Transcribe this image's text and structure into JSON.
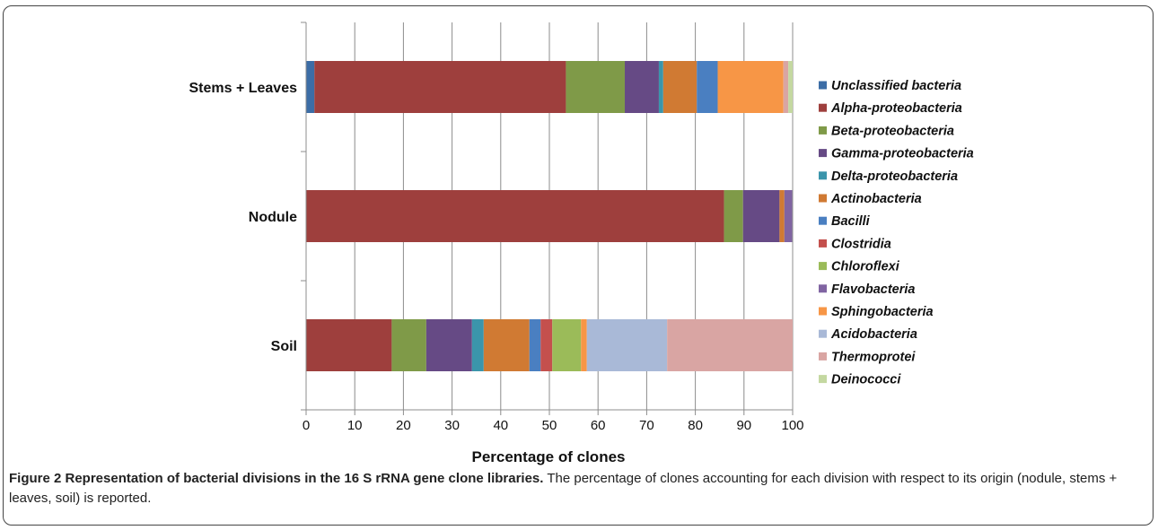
{
  "colors": {
    "Unclassified bacteria": "#3c6da6",
    "Alpha-proteobacteria": "#9e3f3d",
    "Beta-proteobacteria": "#7f9a48",
    "Gamma-proteobacteria": "#664a85",
    "Delta-proteobacteria": "#3b95ab",
    "Actinobacteria": "#d07a33",
    "Bacilli": "#4a7fc1",
    "Clostridia": "#c4504d",
    "Chloroflexi": "#9bbb59",
    "Flavobacteria": "#8064a2",
    "Sphingobacteria": "#f79646",
    "Acidobacteria": "#a9b9d7",
    "Thermoprotei": "#d9a5a3",
    "Deinococci": "#c4d8a1"
  },
  "caption": {
    "title": "Figure 2 Representation of bacterial divisions in the 16 S rRNA gene clone libraries.",
    "text": " The percentage of clones accounting for each division with respect to its origin (nodule, stems + leaves, soil) is reported."
  },
  "chart_data": {
    "type": "bar",
    "orientation": "horizontal",
    "stacked": true,
    "categories": [
      "Stems + Leaves",
      "Nodule",
      "Soil"
    ],
    "xlabel": "Percentage of clones",
    "ylabel": "",
    "xlim": [
      0,
      100
    ],
    "xticks": [
      0,
      10,
      20,
      30,
      40,
      50,
      60,
      70,
      80,
      90,
      100
    ],
    "grid": "vertical",
    "legend_position": "right",
    "series": [
      {
        "name": "Unclassified bacteria",
        "values": [
          1.7,
          0,
          0
        ]
      },
      {
        "name": "Alpha-proteobacteria",
        "values": [
          51.7,
          85.9,
          17.6
        ]
      },
      {
        "name": "Beta-proteobacteria",
        "values": [
          12.1,
          3.9,
          7.1
        ]
      },
      {
        "name": "Gamma-proteobacteria",
        "values": [
          7.0,
          7.5,
          9.4
        ]
      },
      {
        "name": "Delta-proteobacteria",
        "values": [
          0.9,
          0,
          2.4
        ]
      },
      {
        "name": "Actinobacteria",
        "values": [
          6.9,
          1.0,
          9.4
        ]
      },
      {
        "name": "Bacilli",
        "values": [
          4.3,
          0,
          2.3
        ]
      },
      {
        "name": "Clostridia",
        "values": [
          0,
          0,
          2.4
        ]
      },
      {
        "name": "Chloroflexi",
        "values": [
          0,
          0,
          5.9
        ]
      },
      {
        "name": "Flavobacteria",
        "values": [
          0,
          1.6,
          0
        ]
      },
      {
        "name": "Sphingobacteria",
        "values": [
          13.5,
          0,
          1.2
        ]
      },
      {
        "name": "Acidobacteria",
        "values": [
          0,
          0,
          16.5
        ]
      },
      {
        "name": "Thermoprotei",
        "values": [
          1.0,
          0,
          25.9
        ]
      },
      {
        "name": "Deinococci",
        "values": [
          0.9,
          0,
          0
        ]
      }
    ]
  }
}
